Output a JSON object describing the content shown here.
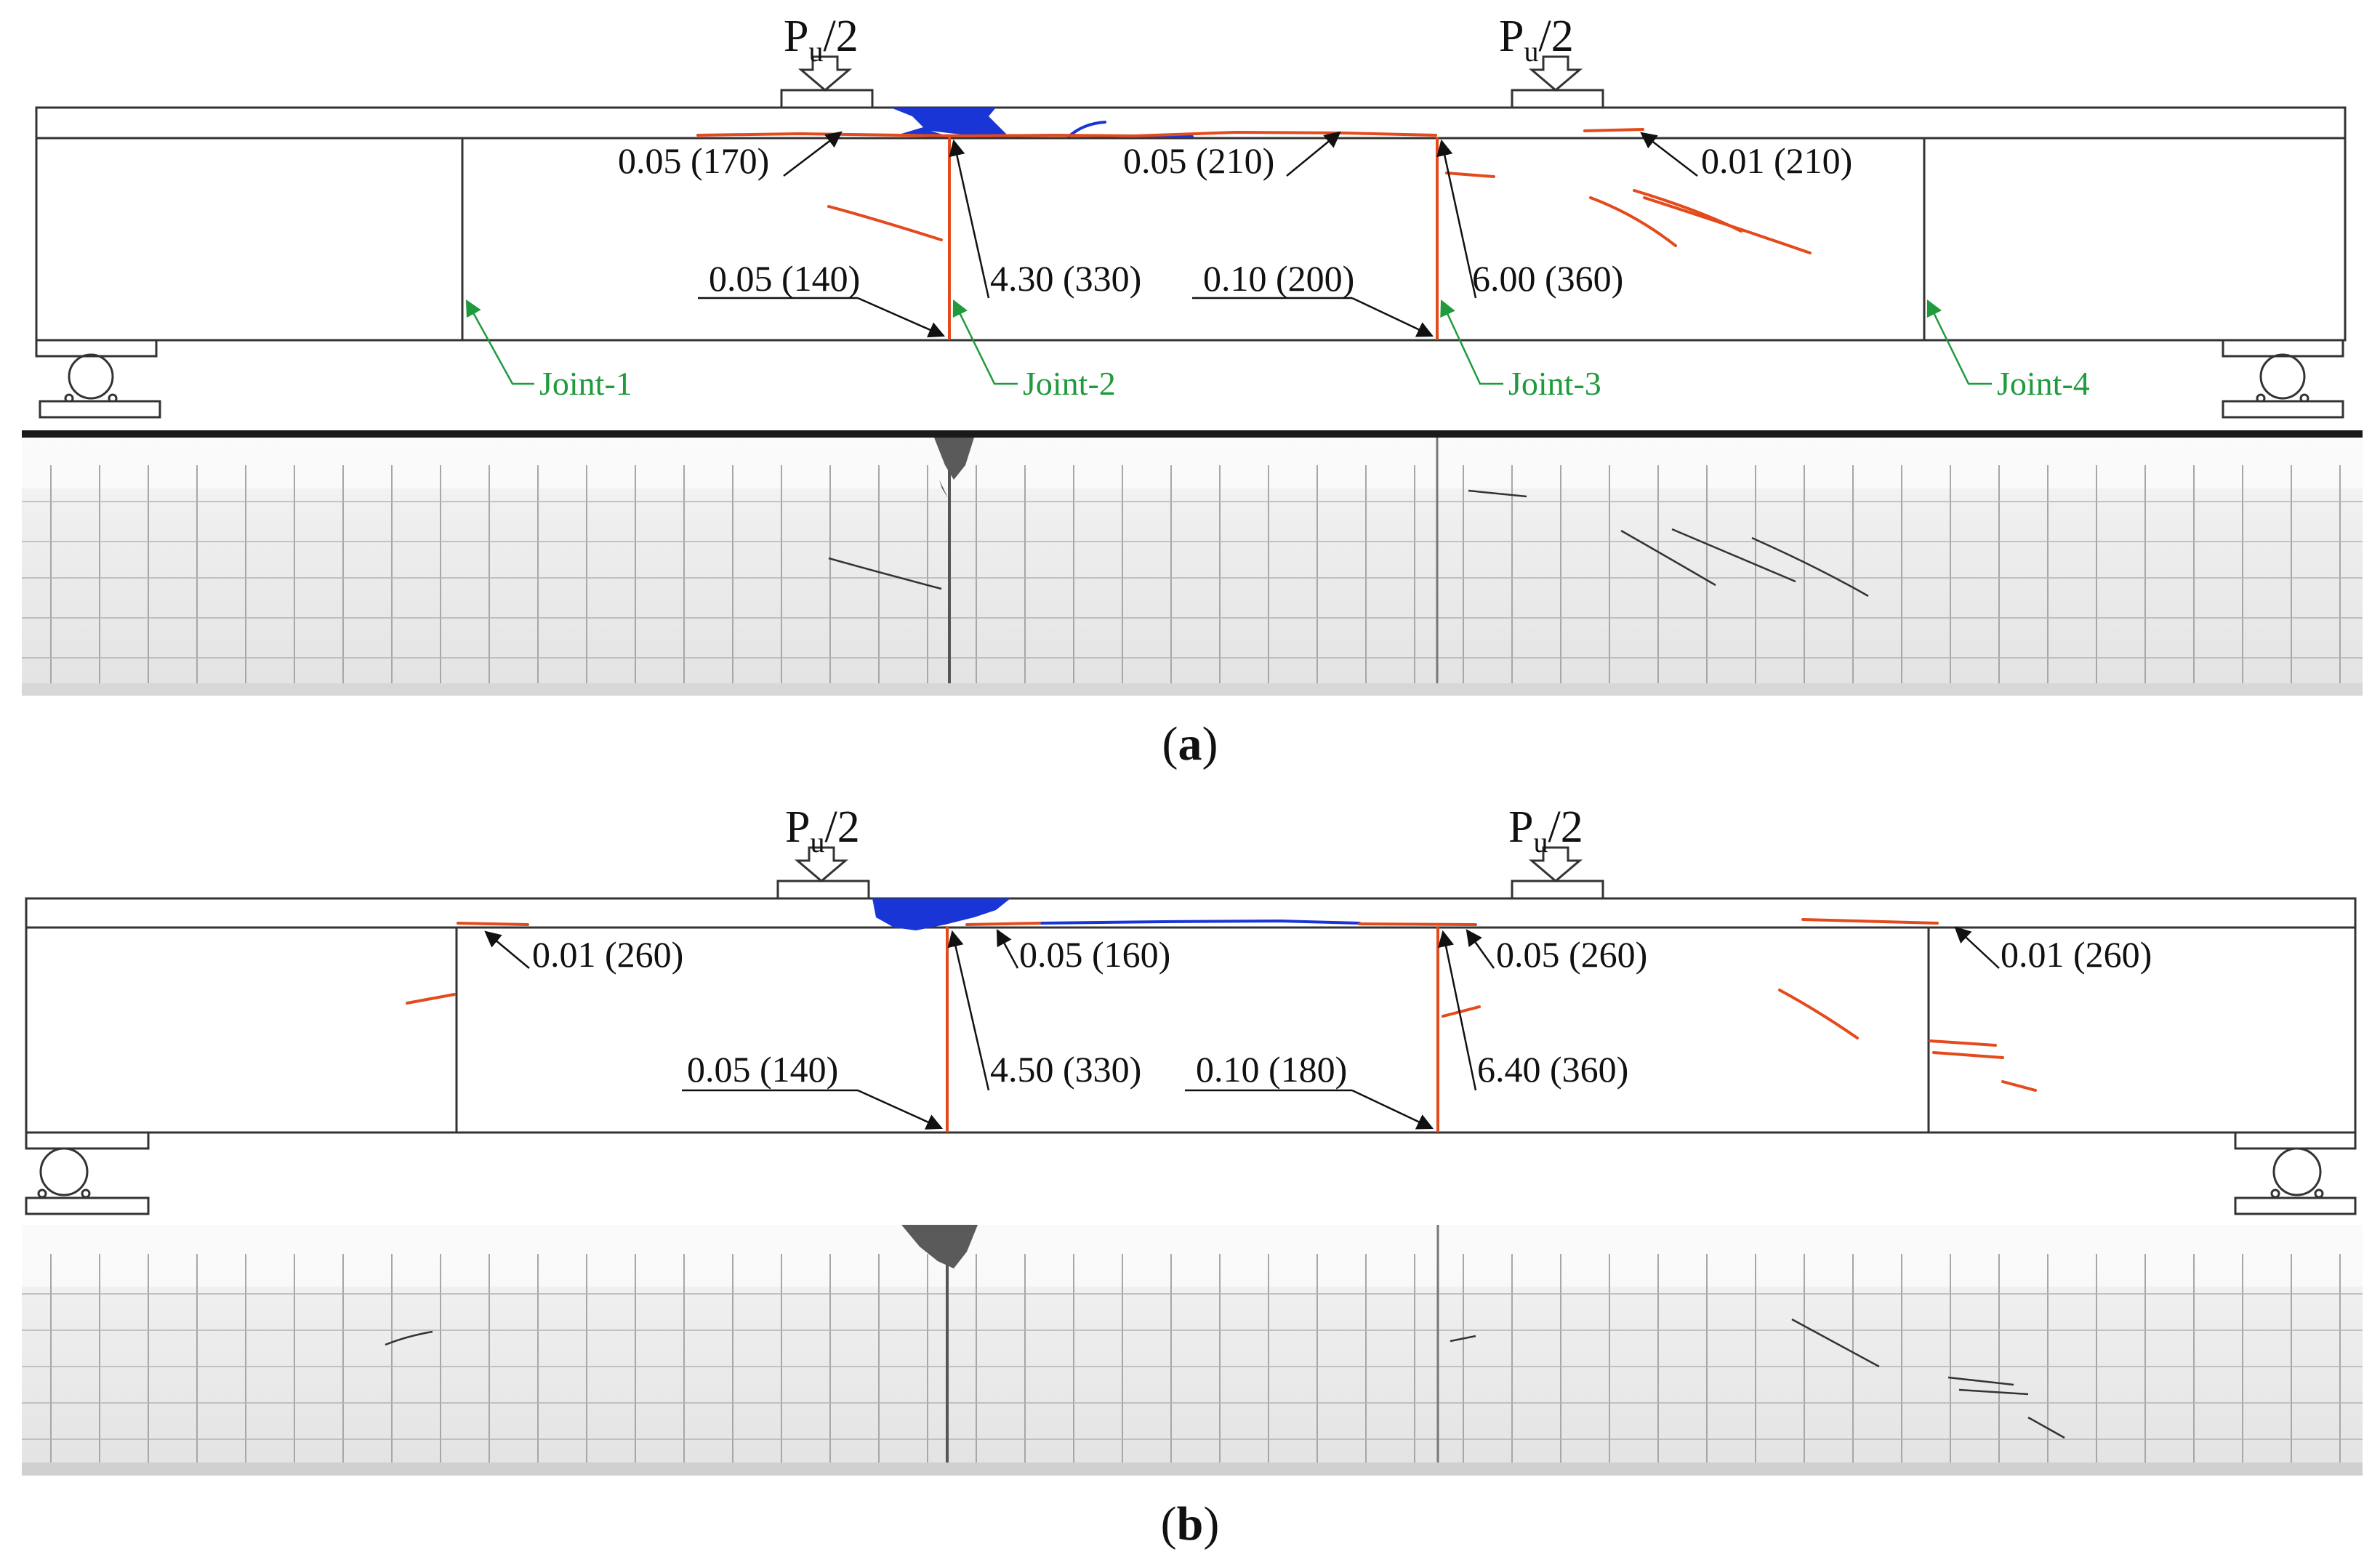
{
  "colors": {
    "crack": "#e34a1c",
    "crushing": "#1a35d6",
    "joint_label": "#1f9a3c",
    "outline": "#333333",
    "text": "#111111"
  },
  "panels": [
    {
      "id": "a",
      "caption_letter": "a",
      "load_left": {
        "main": "P",
        "subscript": "u",
        "tail": "/2"
      },
      "load_right": {
        "main": "P",
        "subscript": "u",
        "tail": "/2"
      },
      "annotations": [
        "0.05 (170)",
        "0.05 (210)",
        "0.01 (210)",
        "0.05 (140)",
        "4.30 (330)",
        "0.10 (200)",
        "6.00 (360)"
      ],
      "joints": [
        "Joint-1",
        "Joint-2",
        "Joint-3",
        "Joint-4"
      ]
    },
    {
      "id": "b",
      "caption_letter": "b",
      "load_left": {
        "main": "P",
        "subscript": "u",
        "tail": "/2"
      },
      "load_right": {
        "main": "P",
        "subscript": "u",
        "tail": "/2"
      },
      "annotations": [
        "0.01 (260)",
        "0.05 (160)",
        "0.05 (260)",
        "0.01 (260)",
        "0.05 (140)",
        "4.50 (330)",
        "0.10 (180)",
        "6.40 (360)"
      ],
      "joints": []
    }
  ]
}
